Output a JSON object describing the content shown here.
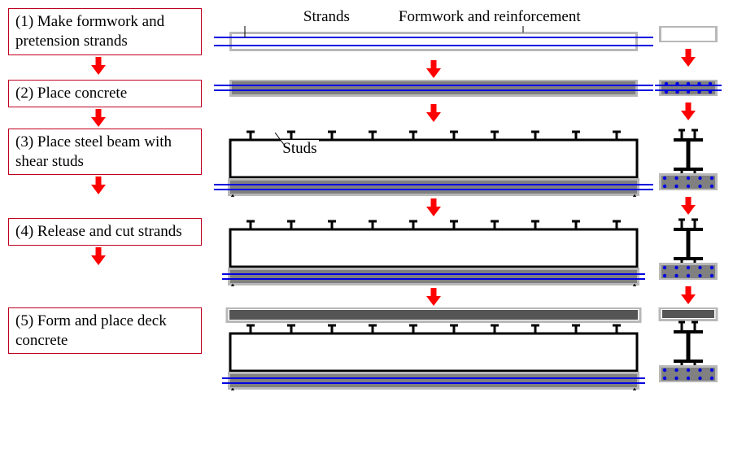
{
  "labels": {
    "strands": "Strands",
    "formwork": "Formwork and reinforcement",
    "studs": "Studs"
  },
  "steps": [
    "(1) Make formwork and pretension strands",
    "(2) Place concrete",
    "(3) Place steel beam with shear studs",
    "(4) Release and cut strands",
    "(5) Form and place deck concrete"
  ],
  "colors": {
    "step_border": "#c00020",
    "arrow": "#ff0000",
    "strand": "#0000e0",
    "steel": "#000000",
    "formwork_border": "#b8b8b8",
    "formwork_fill": "#ffffff",
    "concrete_fill": "#808080",
    "deck_fill": "#555555",
    "dot": "#0000e0",
    "text": "#000000",
    "bg": "#ffffff"
  },
  "geom": {
    "beam_len": 500,
    "beam_h": 20,
    "stud_count": 10,
    "stud_h": 12,
    "strand_overhang": 10,
    "strand_overhang_long": 20,
    "cross_w": 70,
    "cross_slab_h": 20,
    "cross_deck_h": 16,
    "cross_web_h": 32,
    "cross_flange_w": 36
  }
}
